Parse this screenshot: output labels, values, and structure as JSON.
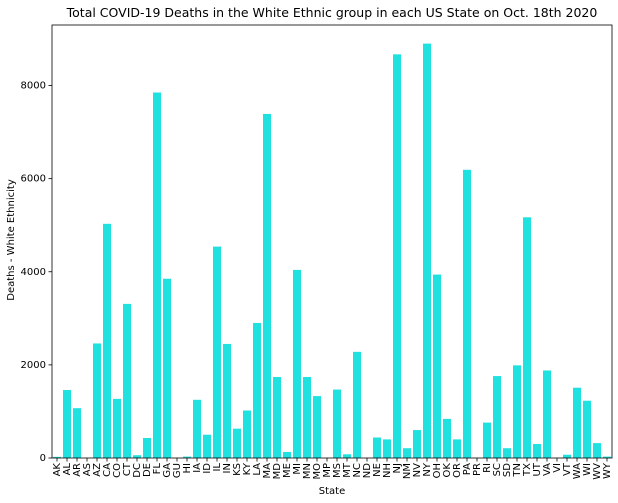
{
  "chart_data": {
    "type": "bar",
    "title": "Total COVID-19 Deaths in the White Ethnic group in each US State on Oct. 18th 2020",
    "xlabel": "State",
    "ylabel": "Deaths - White Ethnicity",
    "ylim": [
      0,
      9300
    ],
    "yticks": [
      0,
      2000,
      4000,
      6000,
      8000
    ],
    "grid": false,
    "bar_color": "#1fe2e0",
    "categories": [
      "AK",
      "AL",
      "AR",
      "AS",
      "AZ",
      "CA",
      "CO",
      "CT",
      "DC",
      "DE",
      "FL",
      "GA",
      "GU",
      "HI",
      "IA",
      "ID",
      "IL",
      "IN",
      "KS",
      "KY",
      "LA",
      "MA",
      "MD",
      "ME",
      "MI",
      "MN",
      "MO",
      "MP",
      "MS",
      "MT",
      "NC",
      "ND",
      "NE",
      "NH",
      "NJ",
      "NM",
      "NV",
      "NY",
      "OH",
      "OK",
      "OR",
      "PA",
      "PR",
      "RI",
      "SC",
      "SD",
      "TN",
      "TX",
      "UT",
      "VA",
      "VI",
      "VT",
      "WA",
      "WI",
      "WV",
      "WY"
    ],
    "values": [
      25,
      1460,
      1070,
      0,
      2460,
      5030,
      1270,
      3310,
      60,
      430,
      7850,
      3850,
      0,
      30,
      1250,
      500,
      4540,
      2450,
      630,
      1020,
      2900,
      7390,
      1740,
      130,
      4040,
      1740,
      1330,
      0,
      1470,
      80,
      2280,
      0,
      440,
      400,
      8670,
      210,
      600,
      8900,
      3940,
      840,
      400,
      6190,
      0,
      760,
      1760,
      210,
      1990,
      5170,
      300,
      1880,
      0,
      70,
      1510,
      1230,
      320,
      30
    ]
  }
}
